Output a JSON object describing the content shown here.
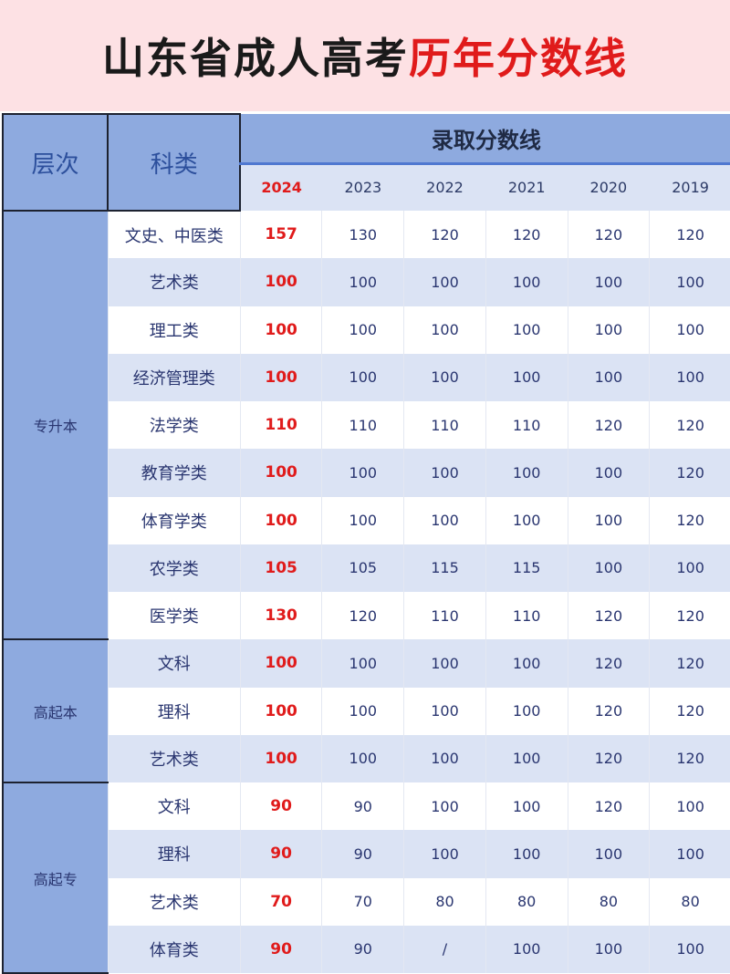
{
  "title": {
    "main": "山东省成人高考",
    "highlight": "历年分数线"
  },
  "header": {
    "level": "层次",
    "category": "科类",
    "group": "录取分数线",
    "years": [
      "2024",
      "2023",
      "2022",
      "2021",
      "2020",
      "2019"
    ]
  },
  "colors": {
    "accent_red": "#e01b1b",
    "header_blue": "#8eaadf",
    "row_alt": "#dbe3f4",
    "title_bg": "#fde1e4"
  },
  "levels": [
    {
      "name": "专升本",
      "rows": [
        {
          "category": "文史、中医类",
          "scores": [
            "157",
            "130",
            "120",
            "120",
            "120",
            "120"
          ]
        },
        {
          "category": "艺术类",
          "scores": [
            "100",
            "100",
            "100",
            "100",
            "100",
            "100"
          ]
        },
        {
          "category": "理工类",
          "scores": [
            "100",
            "100",
            "100",
            "100",
            "100",
            "100"
          ]
        },
        {
          "category": "经济管理类",
          "scores": [
            "100",
            "100",
            "100",
            "100",
            "100",
            "100"
          ]
        },
        {
          "category": "法学类",
          "scores": [
            "110",
            "110",
            "110",
            "110",
            "120",
            "120"
          ]
        },
        {
          "category": "教育学类",
          "scores": [
            "100",
            "100",
            "100",
            "100",
            "100",
            "120"
          ]
        },
        {
          "category": "体育学类",
          "scores": [
            "100",
            "100",
            "100",
            "100",
            "100",
            "120"
          ]
        },
        {
          "category": "农学类",
          "scores": [
            "105",
            "105",
            "115",
            "115",
            "100",
            "100"
          ]
        },
        {
          "category": "医学类",
          "scores": [
            "130",
            "120",
            "110",
            "110",
            "120",
            "120"
          ]
        }
      ]
    },
    {
      "name": "高起本",
      "rows": [
        {
          "category": "文科",
          "scores": [
            "100",
            "100",
            "100",
            "100",
            "120",
            "120"
          ]
        },
        {
          "category": "理科",
          "scores": [
            "100",
            "100",
            "100",
            "100",
            "120",
            "120"
          ]
        },
        {
          "category": "艺术类",
          "scores": [
            "100",
            "100",
            "100",
            "100",
            "120",
            "120"
          ]
        }
      ]
    },
    {
      "name": "高起专",
      "rows": [
        {
          "category": "文科",
          "scores": [
            "90",
            "90",
            "100",
            "100",
            "120",
            "100"
          ]
        },
        {
          "category": "理科",
          "scores": [
            "90",
            "90",
            "100",
            "100",
            "100",
            "100"
          ]
        },
        {
          "category": "艺术类",
          "scores": [
            "70",
            "70",
            "80",
            "80",
            "80",
            "80"
          ]
        },
        {
          "category": "体育类",
          "scores": [
            "90",
            "90",
            "/",
            "100",
            "100",
            "100"
          ]
        }
      ]
    }
  ]
}
